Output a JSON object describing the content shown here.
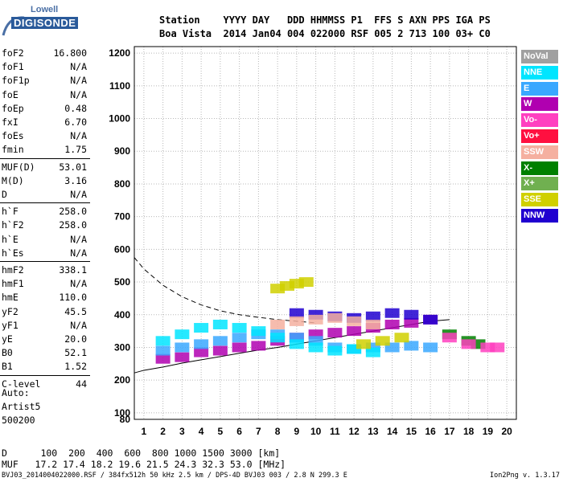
{
  "logo": {
    "line1": "Lowell",
    "line2": "DIGISONDE"
  },
  "header": {
    "line1": "Station    YYYY DAY   DDD HHMMSS P1  FFS S AXN PPS IGA PS",
    "line2": "Boa Vista  2014 Jan04 004 022000 RSF 005 2 713 100 03+ C0"
  },
  "params": {
    "g1": [
      {
        "k": "foF2",
        "v": "16.800"
      },
      {
        "k": "foF1",
        "v": "N/A"
      },
      {
        "k": "foF1p",
        "v": "N/A"
      },
      {
        "k": "foE",
        "v": "N/A"
      },
      {
        "k": "foEp",
        "v": "0.48"
      },
      {
        "k": "fxI",
        "v": "6.70"
      },
      {
        "k": "foEs",
        "v": "N/A"
      },
      {
        "k": "fmin",
        "v": "1.75"
      }
    ],
    "g2": [
      {
        "k": "MUF(D)",
        "v": "53.01"
      },
      {
        "k": "M(D)",
        "v": "3.16"
      },
      {
        "k": "D",
        "v": "N/A"
      }
    ],
    "g3": [
      {
        "k": "h`F",
        "v": "258.0"
      },
      {
        "k": "h`F2",
        "v": "258.0"
      },
      {
        "k": "h`E",
        "v": "N/A"
      },
      {
        "k": "h`Es",
        "v": "N/A"
      }
    ],
    "g4": [
      {
        "k": "hmF2",
        "v": "338.1"
      },
      {
        "k": "hmF1",
        "v": "N/A"
      },
      {
        "k": "hmE",
        "v": "110.0"
      },
      {
        "k": "yF2",
        "v": "45.5"
      },
      {
        "k": "yF1",
        "v": "N/A"
      },
      {
        "k": "yE",
        "v": "20.0"
      },
      {
        "k": "B0",
        "v": "52.1"
      },
      {
        "k": "B1",
        "v": "1.52"
      }
    ],
    "g5": [
      {
        "k": "C-level",
        "v": "44"
      }
    ]
  },
  "auto": {
    "line1": "Auto:",
    "line2": "Artist5",
    "line3": "500200"
  },
  "legend": [
    {
      "label": "NoVal",
      "color": "#a0a0a0"
    },
    {
      "label": "NNE",
      "color": "#00e5ff"
    },
    {
      "label": "E",
      "color": "#3aa8ff"
    },
    {
      "label": "W",
      "color": "#b000b0"
    },
    {
      "label": "Vo-",
      "color": "#ff40c0"
    },
    {
      "label": "Vo+",
      "color": "#ff1040"
    },
    {
      "label": "SSW",
      "color": "#f5b0a0"
    },
    {
      "label": "X-",
      "color": "#008000"
    },
    {
      "label": "X+",
      "color": "#70b050"
    },
    {
      "label": "SSE",
      "color": "#d0d000"
    },
    {
      "label": "NNW",
      "color": "#2000d0"
    }
  ],
  "bottom": {
    "line1": "D      100  200  400  600  800 1000 1500 3000 [km]",
    "line2": "MUF   17.2 17.4 18.2 19.6 21.5 24.3 32.3 53.0 [MHz]"
  },
  "footer": "BVJ03_2014004022000.RSF / 384fx512h 50 kHz 2.5 km / DPS-4D BVJ03 003 / 2.8 N 299.3 E",
  "version": "Ion2Png v. 1.3.17",
  "chart_data": {
    "type": "scatter",
    "xlim": [
      0.5,
      20.5
    ],
    "ylim": [
      80,
      1220
    ],
    "x_ticks": [
      1,
      2,
      3,
      4,
      5,
      6,
      7,
      8,
      9,
      10,
      11,
      12,
      13,
      14,
      15,
      16,
      17,
      18,
      19,
      20
    ],
    "y_ticks": [
      80,
      100,
      200,
      300,
      400,
      500,
      600,
      700,
      800,
      900,
      1000,
      1100,
      1200
    ],
    "grid": true,
    "series": [
      {
        "name": "W",
        "color": "#b000b0",
        "points": [
          [
            2,
            265
          ],
          [
            3,
            270
          ],
          [
            4,
            285
          ],
          [
            5,
            290
          ],
          [
            6,
            300
          ],
          [
            7,
            305
          ],
          [
            8,
            320
          ],
          [
            9,
            330
          ],
          [
            10,
            340
          ],
          [
            11,
            345
          ],
          [
            12,
            350
          ],
          [
            13,
            360
          ],
          [
            14,
            370
          ],
          [
            15,
            375
          ],
          [
            16,
            385
          ]
        ]
      },
      {
        "name": "E",
        "color": "#3aa8ff",
        "points": [
          [
            2,
            290
          ],
          [
            3,
            300
          ],
          [
            4,
            310
          ],
          [
            5,
            320
          ],
          [
            6,
            330
          ],
          [
            7,
            340
          ],
          [
            8,
            340
          ],
          [
            9,
            330
          ],
          [
            10,
            320
          ],
          [
            11,
            300
          ],
          [
            12,
            295
          ],
          [
            13,
            300
          ],
          [
            14,
            300
          ],
          [
            15,
            305
          ],
          [
            16,
            300
          ]
        ]
      },
      {
        "name": "NNE",
        "color": "#00e5ff",
        "points": [
          [
            2,
            320
          ],
          [
            3,
            340
          ],
          [
            4,
            360
          ],
          [
            5,
            370
          ],
          [
            6,
            360
          ],
          [
            7,
            350
          ],
          [
            8,
            330
          ],
          [
            9,
            310
          ],
          [
            10,
            300
          ],
          [
            11,
            290
          ],
          [
            12,
            295
          ],
          [
            13,
            285
          ]
        ]
      },
      {
        "name": "NNW",
        "color": "#2000d0",
        "points": [
          [
            9,
            405
          ],
          [
            10,
            400
          ],
          [
            11,
            395
          ],
          [
            12,
            390
          ],
          [
            13,
            395
          ],
          [
            14,
            405
          ],
          [
            15,
            400
          ],
          [
            16,
            385
          ]
        ]
      },
      {
        "name": "SSW",
        "color": "#f5b0a0",
        "points": [
          [
            8,
            370
          ],
          [
            9,
            380
          ],
          [
            10,
            385
          ],
          [
            11,
            390
          ],
          [
            12,
            380
          ],
          [
            13,
            370
          ]
        ]
      },
      {
        "name": "SSE",
        "color": "#d0d000",
        "points": [
          [
            8,
            480
          ],
          [
            8.5,
            488
          ],
          [
            9,
            495
          ],
          [
            9.5,
            500
          ],
          [
            12.5,
            310
          ],
          [
            13.5,
            320
          ],
          [
            14.5,
            330
          ]
        ]
      },
      {
        "name": "X-",
        "color": "#008000",
        "points": [
          [
            17,
            340
          ],
          [
            18,
            320
          ],
          [
            18.5,
            310
          ]
        ]
      },
      {
        "name": "Vo-",
        "color": "#ff40c0",
        "points": [
          [
            17,
            330
          ],
          [
            18,
            310
          ],
          [
            19,
            300
          ],
          [
            19.5,
            300
          ]
        ]
      }
    ],
    "profile_dashed": [
      [
        0.5,
        575
      ],
      [
        1,
        540
      ],
      [
        2,
        490
      ],
      [
        3,
        455
      ],
      [
        4,
        430
      ],
      [
        5,
        412
      ],
      [
        6,
        400
      ],
      [
        7,
        392
      ],
      [
        8,
        385
      ],
      [
        9,
        380
      ],
      [
        10,
        375
      ]
    ],
    "profile_solid": [
      [
        0.5,
        222
      ],
      [
        1,
        230
      ],
      [
        2,
        240
      ],
      [
        3,
        252
      ],
      [
        4,
        262
      ],
      [
        5,
        272
      ],
      [
        6,
        282
      ],
      [
        7,
        292
      ],
      [
        8,
        300
      ],
      [
        9,
        310
      ],
      [
        10,
        320
      ],
      [
        11,
        330
      ],
      [
        12,
        340
      ],
      [
        13,
        350
      ],
      [
        14,
        360
      ],
      [
        15,
        370
      ],
      [
        16,
        380
      ],
      [
        17,
        385
      ]
    ]
  }
}
